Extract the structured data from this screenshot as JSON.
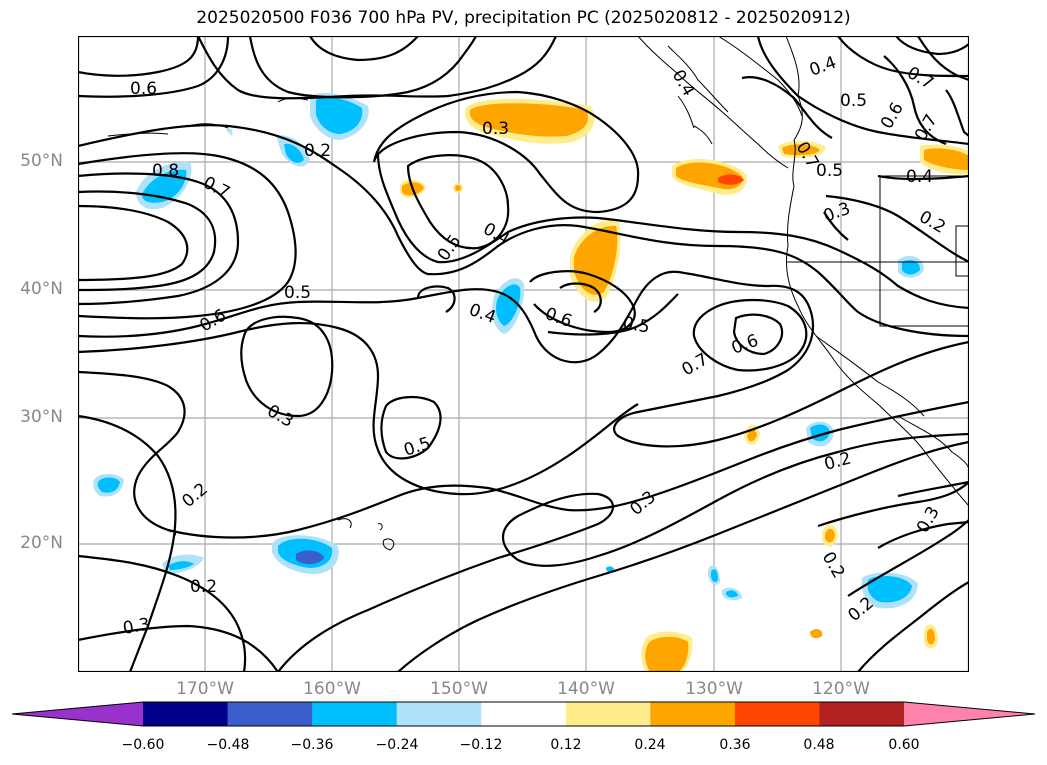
{
  "title": "2025020500 F036 700 hPa PV, precipitation PC (2025020812 - 2025020912)",
  "latitude_labels": [
    "50°N",
    "40°N",
    "30°N",
    "20°N"
  ],
  "longitude_labels": [
    "170°W",
    "160°W",
    "150°W",
    "140°W",
    "130°W",
    "120°W"
  ],
  "colorbar": {
    "ticks": [
      "−0.60",
      "−0.48",
      "−0.36",
      "−0.24",
      "−0.12",
      "0.12",
      "0.24",
      "0.36",
      "0.48",
      "0.60"
    ],
    "colors": [
      "#9932cc",
      "#00008b",
      "#3a5fcd",
      "#00bfff",
      "#aee1fa",
      "#ffffff",
      "#ffec8b",
      "#ffa500",
      "#ff4500",
      "#b22222",
      "#ff82ab"
    ]
  },
  "contour_labels": {
    "a": "0.6",
    "b": "0.8",
    "c": "0.7",
    "d": "0.2",
    "e": "0.3",
    "f": "0.4",
    "g": "0.5",
    "h": "0.5",
    "i": "0.6",
    "j": "0.3",
    "k": "0.5",
    "l": "0.4",
    "m": "0.6",
    "n": "0.5",
    "o": "0.7",
    "p": "0.6",
    "q": "0.2",
    "r": "0.3",
    "s": "0.2",
    "t": "0.2",
    "u": "0.3",
    "v": "0.2",
    "w": "0.2",
    "x": "0.3",
    "y": "0.4",
    "z": "0.5",
    "aa": "0.7",
    "ab": "0.6",
    "ac": "0.7",
    "ad": "0.5",
    "ae": "0.4",
    "af": "0.3",
    "ag": "0.2",
    "ah": "0.4",
    "ai": "0.7"
  }
}
